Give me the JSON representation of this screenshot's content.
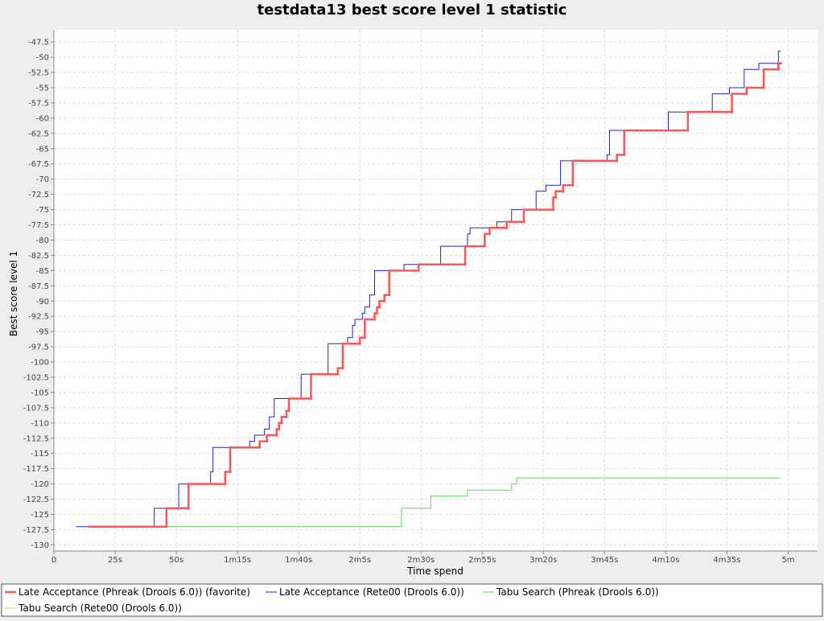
{
  "chart_data": {
    "type": "line",
    "title": "testdata13 best score level 1 statistic",
    "xlabel": "Time spend",
    "ylabel": "Best score level 1",
    "xlim": [
      0,
      312
    ],
    "ylim": [
      -131,
      -45.5
    ],
    "grid": true,
    "legend": "bottom",
    "x_ticks": [
      {
        "v": 0,
        "label": "0"
      },
      {
        "v": 25,
        "label": "25s"
      },
      {
        "v": 50,
        "label": "50s"
      },
      {
        "v": 75,
        "label": "1m15s"
      },
      {
        "v": 100,
        "label": "1m40s"
      },
      {
        "v": 125,
        "label": "2m5s"
      },
      {
        "v": 150,
        "label": "2m30s"
      },
      {
        "v": 175,
        "label": "2m55s"
      },
      {
        "v": 200,
        "label": "3m20s"
      },
      {
        "v": 225,
        "label": "3m45s"
      },
      {
        "v": 250,
        "label": "4m10s"
      },
      {
        "v": 275,
        "label": "4m35s"
      },
      {
        "v": 300,
        "label": "5m"
      }
    ],
    "y_ticks": [
      {
        "v": -47.5,
        "label": "-47.5"
      },
      {
        "v": -50,
        "label": "-50"
      },
      {
        "v": -52.5,
        "label": "-52.5"
      },
      {
        "v": -55,
        "label": "-55"
      },
      {
        "v": -57.5,
        "label": "-57.5"
      },
      {
        "v": -60,
        "label": "-60"
      },
      {
        "v": -62.5,
        "label": "-62.5"
      },
      {
        "v": -65,
        "label": "-65"
      },
      {
        "v": -67.5,
        "label": "-67.5"
      },
      {
        "v": -70,
        "label": "-70"
      },
      {
        "v": -72.5,
        "label": "-72.5"
      },
      {
        "v": -75,
        "label": "-75"
      },
      {
        "v": -77.5,
        "label": "-77.5"
      },
      {
        "v": -80,
        "label": "-80"
      },
      {
        "v": -82.5,
        "label": "-82.5"
      },
      {
        "v": -85,
        "label": "-85"
      },
      {
        "v": -87.5,
        "label": "-87.5"
      },
      {
        "v": -90,
        "label": "-90"
      },
      {
        "v": -92.5,
        "label": "-92.5"
      },
      {
        "v": -95,
        "label": "-95"
      },
      {
        "v": -97.5,
        "label": "-97.5"
      },
      {
        "v": -100,
        "label": "-100"
      },
      {
        "v": -102.5,
        "label": "-102.5"
      },
      {
        "v": -105,
        "label": "-105"
      },
      {
        "v": -107.5,
        "label": "-107.5"
      },
      {
        "v": -110,
        "label": "-110"
      },
      {
        "v": -112.5,
        "label": "-112.5"
      },
      {
        "v": -115,
        "label": "-115"
      },
      {
        "v": -117.5,
        "label": "-117.5"
      },
      {
        "v": -120,
        "label": "-120"
      },
      {
        "v": -122.5,
        "label": "-122.5"
      },
      {
        "v": -125,
        "label": "-125"
      },
      {
        "v": -127.5,
        "label": "-127.5"
      },
      {
        "v": -130,
        "label": "-130"
      }
    ],
    "series": [
      {
        "name": "Late Acceptance (Phreak (Drools 6.0)) (favorite)",
        "color": "#ff5555",
        "style": "thick",
        "points": [
          [
            14,
            -127
          ],
          [
            46,
            -127
          ],
          [
            46,
            -124
          ],
          [
            55,
            -124
          ],
          [
            55,
            -120
          ],
          [
            70,
            -120
          ],
          [
            70,
            -118
          ],
          [
            72,
            -118
          ],
          [
            72,
            -114
          ],
          [
            84,
            -114
          ],
          [
            84,
            -113
          ],
          [
            87,
            -113
          ],
          [
            87,
            -112
          ],
          [
            91,
            -112
          ],
          [
            91,
            -111
          ],
          [
            92,
            -111
          ],
          [
            92,
            -110
          ],
          [
            93,
            -110
          ],
          [
            93,
            -109
          ],
          [
            95,
            -109
          ],
          [
            95,
            -108
          ],
          [
            96,
            -108
          ],
          [
            96,
            -106
          ],
          [
            105,
            -106
          ],
          [
            105,
            -102
          ],
          [
            116,
            -102
          ],
          [
            116,
            -101
          ],
          [
            118,
            -101
          ],
          [
            118,
            -97
          ],
          [
            125,
            -97
          ],
          [
            125,
            -96
          ],
          [
            127,
            -96
          ],
          [
            127,
            -93
          ],
          [
            131,
            -93
          ],
          [
            131,
            -92
          ],
          [
            132,
            -92
          ],
          [
            132,
            -91
          ],
          [
            133,
            -91
          ],
          [
            133,
            -90
          ],
          [
            135,
            -90
          ],
          [
            135,
            -89
          ],
          [
            137,
            -89
          ],
          [
            137,
            -85
          ],
          [
            149,
            -85
          ],
          [
            149,
            -84
          ],
          [
            168,
            -84
          ],
          [
            168,
            -81
          ],
          [
            176,
            -81
          ],
          [
            176,
            -79
          ],
          [
            178,
            -79
          ],
          [
            178,
            -78
          ],
          [
            185,
            -78
          ],
          [
            185,
            -77
          ],
          [
            192,
            -77
          ],
          [
            192,
            -75
          ],
          [
            204,
            -75
          ],
          [
            204,
            -73
          ],
          [
            205,
            -73
          ],
          [
            205,
            -72
          ],
          [
            208,
            -72
          ],
          [
            208,
            -71
          ],
          [
            212,
            -71
          ],
          [
            212,
            -67
          ],
          [
            230,
            -67
          ],
          [
            230,
            -66
          ],
          [
            233,
            -66
          ],
          [
            233,
            -62
          ],
          [
            259,
            -62
          ],
          [
            259,
            -59
          ],
          [
            277,
            -59
          ],
          [
            277,
            -56
          ],
          [
            283,
            -56
          ],
          [
            283,
            -55
          ],
          [
            290,
            -55
          ],
          [
            290,
            -52
          ],
          [
            296,
            -52
          ],
          [
            296,
            -51
          ],
          [
            297,
            -51
          ]
        ]
      },
      {
        "name": "Late Acceptance (Rete00 (Drools 6.0))",
        "color": "#2222cc",
        "style": "thin",
        "points": [
          [
            9,
            -127
          ],
          [
            41,
            -127
          ],
          [
            41,
            -124
          ],
          [
            51,
            -124
          ],
          [
            51,
            -120
          ],
          [
            64,
            -120
          ],
          [
            64,
            -118
          ],
          [
            65,
            -118
          ],
          [
            65,
            -114
          ],
          [
            80,
            -114
          ],
          [
            80,
            -113
          ],
          [
            82,
            -113
          ],
          [
            82,
            -112
          ],
          [
            86,
            -112
          ],
          [
            86,
            -111
          ],
          [
            88,
            -111
          ],
          [
            88,
            -109
          ],
          [
            90,
            -109
          ],
          [
            90,
            -106
          ],
          [
            101,
            -106
          ],
          [
            101,
            -102
          ],
          [
            112,
            -102
          ],
          [
            112,
            -97
          ],
          [
            120,
            -97
          ],
          [
            120,
            -96
          ],
          [
            122,
            -96
          ],
          [
            122,
            -94
          ],
          [
            123,
            -94
          ],
          [
            123,
            -93
          ],
          [
            126,
            -93
          ],
          [
            126,
            -92
          ],
          [
            127,
            -92
          ],
          [
            127,
            -91
          ],
          [
            129,
            -91
          ],
          [
            129,
            -89
          ],
          [
            131,
            -89
          ],
          [
            131,
            -85
          ],
          [
            143,
            -85
          ],
          [
            143,
            -84
          ],
          [
            158,
            -84
          ],
          [
            158,
            -81
          ],
          [
            169,
            -81
          ],
          [
            169,
            -79
          ],
          [
            170,
            -79
          ],
          [
            170,
            -78
          ],
          [
            181,
            -78
          ],
          [
            181,
            -77
          ],
          [
            187,
            -77
          ],
          [
            187,
            -75
          ],
          [
            197,
            -75
          ],
          [
            197,
            -72
          ],
          [
            201,
            -72
          ],
          [
            201,
            -71
          ],
          [
            207,
            -71
          ],
          [
            207,
            -67
          ],
          [
            226,
            -67
          ],
          [
            226,
            -66
          ],
          [
            227,
            -66
          ],
          [
            227,
            -62
          ],
          [
            251,
            -62
          ],
          [
            251,
            -59
          ],
          [
            269,
            -59
          ],
          [
            269,
            -56
          ],
          [
            276,
            -56
          ],
          [
            276,
            -55
          ],
          [
            282,
            -55
          ],
          [
            282,
            -52
          ],
          [
            288,
            -52
          ],
          [
            288,
            -51
          ],
          [
            296,
            -51
          ],
          [
            296,
            -49
          ],
          [
            297,
            -49
          ]
        ]
      },
      {
        "name": "Tabu Search (Phreak (Drools 6.0))",
        "color": "#55dd55",
        "style": "thin",
        "points": [
          [
            46,
            -127
          ],
          [
            142,
            -127
          ],
          [
            142,
            -124
          ],
          [
            154,
            -124
          ],
          [
            154,
            -122
          ],
          [
            169,
            -122
          ],
          [
            169,
            -121
          ],
          [
            187,
            -121
          ],
          [
            187,
            -120
          ],
          [
            189,
            -120
          ],
          [
            189,
            -119
          ],
          [
            297,
            -119
          ]
        ]
      },
      {
        "name": "Tabu Search (Rete00 (Drools 6.0))",
        "color": "#dddd44",
        "style": "thin",
        "points": []
      }
    ]
  }
}
